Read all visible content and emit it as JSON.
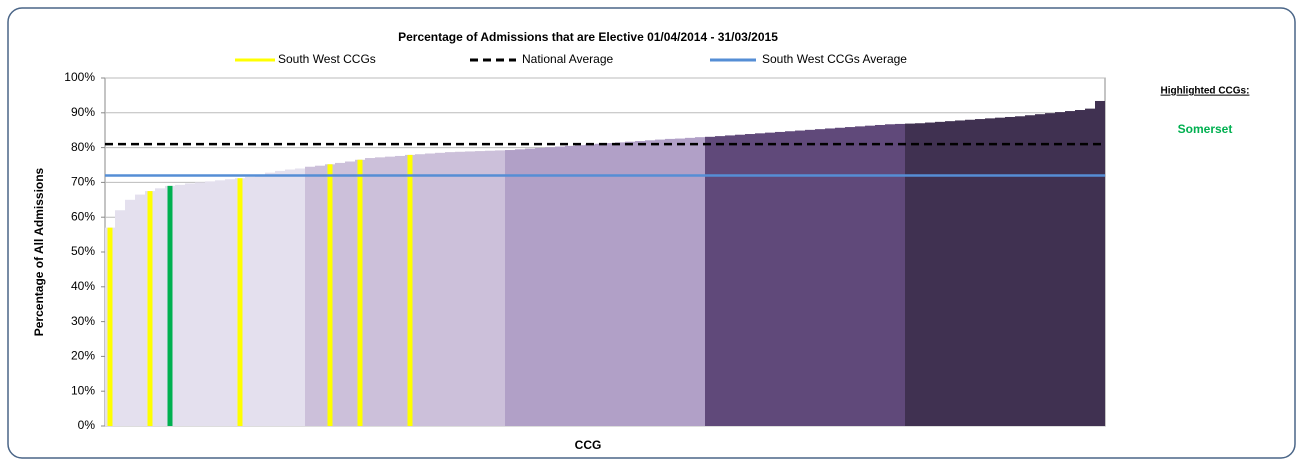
{
  "chart_data": {
    "type": "bar",
    "title": "Percentage of Admissions that are Elective 01/04/2014 - 31/03/2015",
    "x_label": "CCG",
    "y_label": "Percentage of All Admissions",
    "values": [
      57,
      62,
      65,
      66.5,
      67.5,
      68.3,
      69,
      69.3,
      69.7,
      70,
      70.3,
      70.6,
      70.9,
      71.2,
      71.6,
      72,
      72.8,
      73.3,
      73.7,
      74,
      74.5,
      74.8,
      75.2,
      75.6,
      76,
      76.5,
      77,
      77.2,
      77.4,
      77.6,
      77.9,
      78.1,
      78.3,
      78.5,
      78.7,
      78.8,
      78.9,
      79,
      79.1,
      79.2,
      79.3,
      79.5,
      79.7,
      79.9,
      80.1,
      80.3,
      80.5,
      80.7,
      80.9,
      81.1,
      81.3,
      81.5,
      81.7,
      81.9,
      82.1,
      82.3,
      82.5,
      82.6,
      82.8,
      83,
      83.1,
      83.3,
      83.5,
      83.7,
      83.9,
      84.1,
      84.3,
      84.5,
      84.7,
      84.9,
      85.1,
      85.3,
      85.5,
      85.7,
      85.9,
      86.1,
      86.3,
      86.5,
      86.7,
      86.8,
      86.9,
      87,
      87.2,
      87.4,
      87.6,
      87.8,
      88,
      88.2,
      88.4,
      88.6,
      88.8,
      89,
      89.3,
      89.6,
      89.9,
      90.2,
      90.5,
      90.8,
      91.2,
      93.4
    ],
    "quintile_colors": [
      "#e4e0ee",
      "#ccc0da",
      "#b1a0c7",
      "#60497a",
      "#403151"
    ],
    "ylim": [
      0,
      100
    ],
    "yticks": [
      {
        "value": 0,
        "label": "0%"
      },
      {
        "value": 10,
        "label": "10%"
      },
      {
        "value": 20,
        "label": "20%"
      },
      {
        "value": 30,
        "label": "30%"
      },
      {
        "value": 40,
        "label": "40%"
      },
      {
        "value": 50,
        "label": "50%"
      },
      {
        "value": 60,
        "label": "60%"
      },
      {
        "value": 70,
        "label": "70%"
      },
      {
        "value": 80,
        "label": "80%"
      },
      {
        "value": 90,
        "label": "90%"
      },
      {
        "value": 100,
        "label": "100%"
      }
    ],
    "grid": true,
    "highlights": {
      "name": "South West CCGs",
      "color": "#ffff00",
      "indices": [
        0,
        4,
        13,
        22,
        25,
        30
      ]
    },
    "reference_lines": [
      {
        "name": "National Average",
        "value": 81,
        "color": "#000000",
        "dash": true
      },
      {
        "name": "South West CCGs Average",
        "value": 72,
        "color": "#558ed5",
        "dash": false
      }
    ],
    "highlighted_ccgs": {
      "title": "Highlighted CCGs:",
      "names": [
        "Somerset"
      ],
      "color": "#00b050",
      "indices": [
        6
      ]
    }
  }
}
